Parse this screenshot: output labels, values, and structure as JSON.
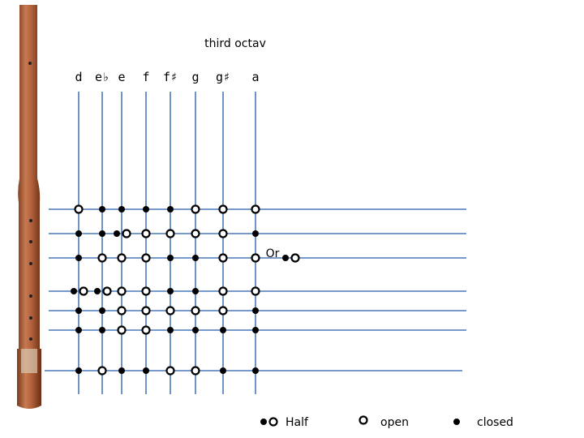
{
  "title": "third octav",
  "notes": [
    "d",
    "e♭",
    "e",
    "f",
    "f♯",
    "g",
    "g♯",
    "a"
  ],
  "alternative": "Or",
  "legend": [
    "Half",
    "open",
    "closed"
  ]
}
